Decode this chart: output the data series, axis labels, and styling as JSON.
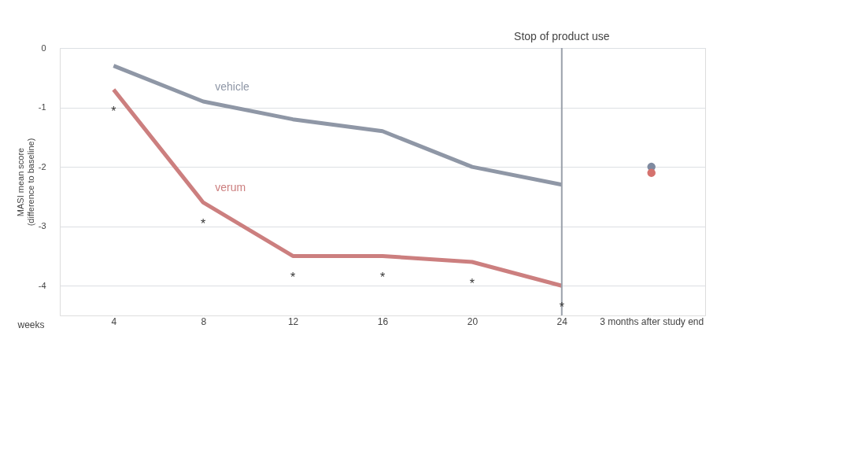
{
  "chart_data": {
    "type": "line",
    "xlabel": "weeks",
    "ylabel": "MASI mean score\n(difference to baseline)",
    "categories": [
      "4",
      "8",
      "12",
      "16",
      "20",
      "24",
      "3 months after study end"
    ],
    "series": [
      {
        "name": "vehicle",
        "color": "#8f97a6",
        "values": [
          -0.3,
          -0.9,
          -1.2,
          -1.4,
          -2.0,
          -2.3,
          null
        ]
      },
      {
        "name": "verum",
        "color": "#cc7f7f",
        "values": [
          -0.7,
          -2.6,
          -3.5,
          -3.5,
          -3.6,
          -4.0,
          null
        ]
      },
      {
        "type": "scatter",
        "marker": "circle",
        "color": "#7f8aa0",
        "values": [
          null,
          null,
          null,
          null,
          null,
          null,
          -2.0
        ]
      },
      {
        "type": "scatter",
        "marker": "circle",
        "color": "#d5726e",
        "values": [
          null,
          null,
          null,
          null,
          null,
          null,
          -2.1
        ]
      }
    ],
    "ylim": [
      -4.5,
      0
    ],
    "yticks": [
      0,
      -1,
      -2,
      -3,
      -4
    ],
    "ref_lines": [
      {
        "axis": "x",
        "value": "24",
        "label": "Stop of product use",
        "color": "#9aa0aa"
      }
    ],
    "annotations": [
      "*",
      "*",
      "*",
      "*",
      "*",
      "*"
    ],
    "grid": true,
    "legend": false,
    "marker": "none",
    "line_style": "solid"
  }
}
